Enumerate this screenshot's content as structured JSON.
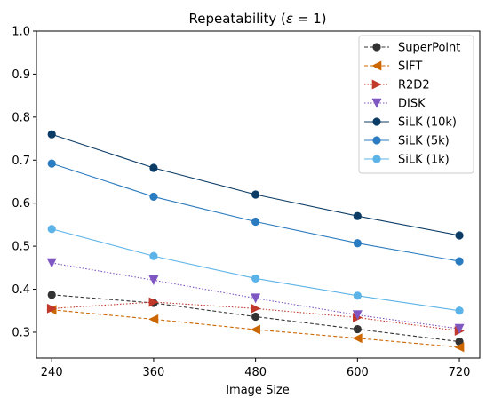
{
  "chart_data": {
    "type": "line",
    "title_prefix": "Repeatability (",
    "title_symbol": "ε",
    "title_suffix": " = 1)",
    "xlabel": "Image Size",
    "ylabel": "",
    "x": [
      240,
      360,
      480,
      600,
      720
    ],
    "xlim": [
      222,
      744
    ],
    "ylim": [
      0.24,
      1.0
    ],
    "yticks": [
      0.3,
      0.4,
      0.5,
      0.6,
      0.7,
      0.8,
      0.9,
      1.0
    ],
    "ytick_labels": [
      "0.3",
      "0.4",
      "0.5",
      "0.6",
      "0.7",
      "0.8",
      "0.9",
      "1.0"
    ],
    "xtick_labels": [
      "240",
      "360",
      "480",
      "600",
      "720"
    ],
    "grid": false,
    "legend_position": "top-right",
    "series": [
      {
        "name": "SuperPoint",
        "values": [
          0.387,
          0.368,
          0.336,
          0.307,
          0.278
        ],
        "color": "#333333",
        "dash": "dashed",
        "marker": "circle"
      },
      {
        "name": "SIFT",
        "values": [
          0.352,
          0.33,
          0.306,
          0.286,
          0.265
        ],
        "color": "#cc6600",
        "dash": "dashed",
        "marker": "triangle-left"
      },
      {
        "name": "R2D2",
        "values": [
          0.355,
          0.37,
          0.355,
          0.334,
          0.303
        ],
        "color": "#c0392b",
        "dash": "dotted",
        "marker": "triangle-right"
      },
      {
        "name": "DISK",
        "values": [
          0.461,
          0.421,
          0.379,
          0.34,
          0.308
        ],
        "color": "#7e57c2",
        "dash": "dotted",
        "marker": "triangle-down"
      },
      {
        "name": "SiLK (10k)",
        "values": [
          0.76,
          0.682,
          0.62,
          0.57,
          0.525
        ],
        "color": "#0b3c66",
        "dash": "solid",
        "marker": "circle"
      },
      {
        "name": "SiLK (5k)",
        "values": [
          0.692,
          0.615,
          0.557,
          0.507,
          0.465
        ],
        "color": "#2a7bbf",
        "dash": "solid",
        "marker": "circle"
      },
      {
        "name": "SiLK (1k)",
        "values": [
          0.54,
          0.477,
          0.425,
          0.385,
          0.35
        ],
        "color": "#5cb3e8",
        "dash": "solid",
        "marker": "circle"
      }
    ]
  }
}
